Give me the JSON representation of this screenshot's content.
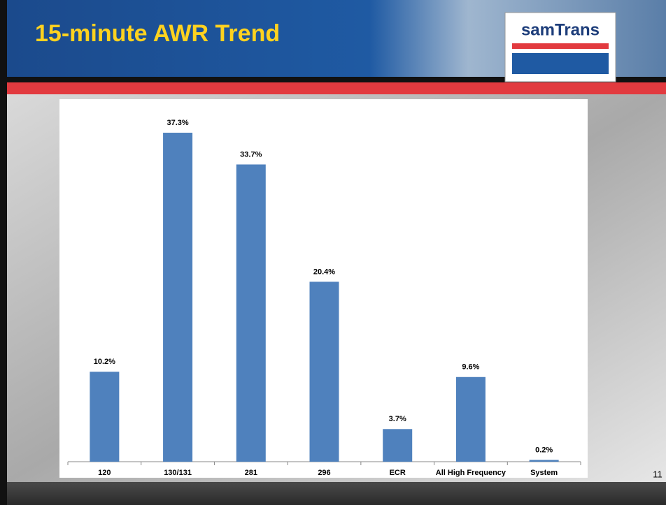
{
  "chart_data": {
    "type": "bar",
    "title": "15-minute AWR Trend",
    "categories": [
      "120",
      "130/131",
      "281",
      "296",
      "ECR",
      "All High Frequency",
      "System"
    ],
    "values": [
      10.2,
      37.3,
      33.7,
      20.4,
      3.7,
      9.6,
      0.2
    ],
    "value_labels": [
      "10.2%",
      "37.3%",
      "33.7%",
      "20.4%",
      "3.7%",
      "9.6%",
      "0.2%"
    ],
    "color": "#4f81bd"
  },
  "logo": "samTrans",
  "page_number": "11"
}
